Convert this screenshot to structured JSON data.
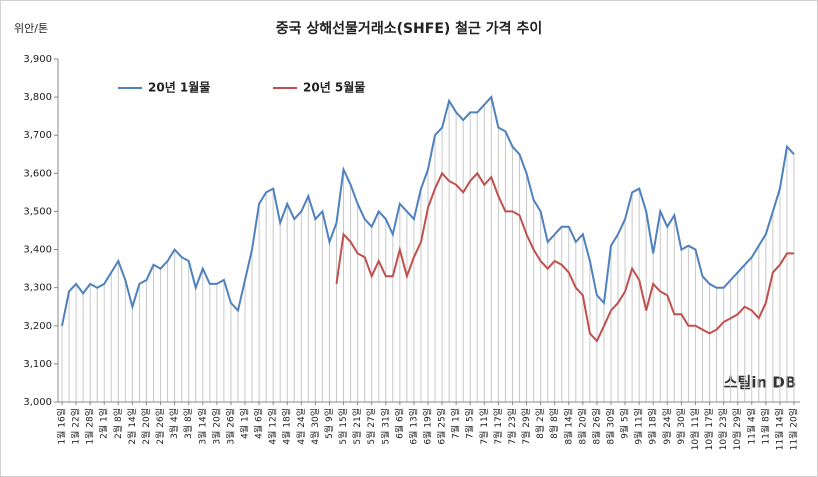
{
  "chart_data": {
    "type": "line",
    "title": "중국 상해선물거래소(SHFE)  철근 가격 추이",
    "y_axis_label": "위안/톤",
    "watermark": "스틸in DB",
    "categories": [
      "1월 16일",
      null,
      "1월 22일",
      null,
      "1월 28일",
      null,
      "2월 1일",
      null,
      "2월 8일",
      null,
      "2월 14일",
      null,
      "2월 20일",
      null,
      "2월 26일",
      null,
      "3월 4일",
      null,
      "3월 8일",
      null,
      "3월 14일",
      null,
      "3월 20일",
      null,
      "3월 26일",
      null,
      "4월 1일",
      null,
      "4월 6일",
      null,
      "4월 12일",
      null,
      "4월 18일",
      null,
      "4월 24일",
      null,
      "4월 30일",
      null,
      "5월 9일",
      null,
      "5월 15일",
      null,
      "5월 21일",
      null,
      "5월 27일",
      null,
      "5월 31일",
      null,
      "6월 6일",
      null,
      "6월 13일",
      null,
      "6월 19일",
      null,
      "6월 25일",
      null,
      "7월 1일",
      null,
      "7월 5일",
      null,
      "7월 11일",
      null,
      "7월 17일",
      null,
      "7월 23일",
      null,
      "7월 29일",
      null,
      "8월 2일",
      null,
      "8월 8일",
      null,
      "8월 14일",
      null,
      "8월 20일",
      null,
      "8월 26일",
      null,
      "8월 30일",
      null,
      "9월 5일",
      null,
      "9월 11일",
      null,
      "9월 18일",
      null,
      "9월 24일",
      null,
      "9월 30일",
      null,
      "10월 11일",
      null,
      "10월 17일",
      null,
      "10월 23일",
      null,
      "10월 29일",
      null,
      "11월 4일",
      null,
      "11월 8일",
      null,
      "11월 14일",
      null,
      "11월 20일"
    ],
    "series": [
      {
        "name": "20년 1월물",
        "color": "#4f81bd",
        "drop_lines": true,
        "values": [
          3200,
          3290,
          3310,
          3285,
          3310,
          3300,
          3310,
          3340,
          3370,
          3320,
          3250,
          3310,
          3320,
          3360,
          3350,
          3370,
          3400,
          3380,
          3370,
          3300,
          3350,
          3310,
          3310,
          3320,
          3260,
          3240,
          3320,
          3400,
          3520,
          3550,
          3560,
          3470,
          3520,
          3480,
          3500,
          3540,
          3480,
          3500,
          3420,
          3470,
          3610,
          3570,
          3520,
          3480,
          3460,
          3500,
          3480,
          3440,
          3520,
          3500,
          3480,
          3560,
          3610,
          3700,
          3720,
          3790,
          3760,
          3740,
          3760,
          3760,
          3780,
          3800,
          3720,
          3710,
          3670,
          3650,
          3600,
          3530,
          3500,
          3420,
          3440,
          3460,
          3460,
          3420,
          3440,
          3370,
          3280,
          3260,
          3410,
          3440,
          3480,
          3550,
          3560,
          3500,
          3390,
          3500,
          3460,
          3490,
          3400,
          3410,
          3400,
          3330,
          3310,
          3300,
          3300,
          3320,
          3340,
          3360,
          3380,
          3410,
          3440,
          3500,
          3560,
          3670,
          3650
        ]
      },
      {
        "name": "20년 5월물",
        "color": "#c0504d",
        "values": [
          null,
          null,
          null,
          null,
          null,
          null,
          null,
          null,
          null,
          null,
          null,
          null,
          null,
          null,
          null,
          null,
          null,
          null,
          null,
          null,
          null,
          null,
          null,
          null,
          null,
          null,
          null,
          null,
          null,
          null,
          null,
          null,
          null,
          null,
          null,
          null,
          null,
          null,
          null,
          3310,
          3440,
          3420,
          3390,
          3380,
          3330,
          3370,
          3330,
          3330,
          3400,
          3330,
          3380,
          3420,
          3510,
          3560,
          3600,
          3580,
          3570,
          3550,
          3580,
          3600,
          3570,
          3590,
          3540,
          3500,
          3500,
          3490,
          3440,
          3400,
          3370,
          3350,
          3370,
          3360,
          3340,
          3300,
          3280,
          3180,
          3160,
          3200,
          3240,
          3260,
          3290,
          3350,
          3320,
          3240,
          3310,
          3290,
          3280,
          3230,
          3230,
          3200,
          3200,
          3190,
          3180,
          3190,
          3210,
          3220,
          3230,
          3250,
          3240,
          3220,
          3260,
          3340,
          3360,
          3390,
          3390
        ]
      }
    ],
    "ylim": [
      3000,
      3900
    ],
    "yticks": [
      {
        "value": 3000,
        "label": "3,000"
      },
      {
        "value": 3100,
        "label": "3,100"
      },
      {
        "value": 3200,
        "label": "3,200"
      },
      {
        "value": 3300,
        "label": "3,300"
      },
      {
        "value": 3400,
        "label": "3,400"
      },
      {
        "value": 3500,
        "label": "3,500"
      },
      {
        "value": 3600,
        "label": "3,600"
      },
      {
        "value": 3700,
        "label": "3,700"
      },
      {
        "value": 3800,
        "label": "3,800"
      },
      {
        "value": 3900,
        "label": "3,900"
      }
    ],
    "grid": false,
    "legend": "top-left"
  }
}
